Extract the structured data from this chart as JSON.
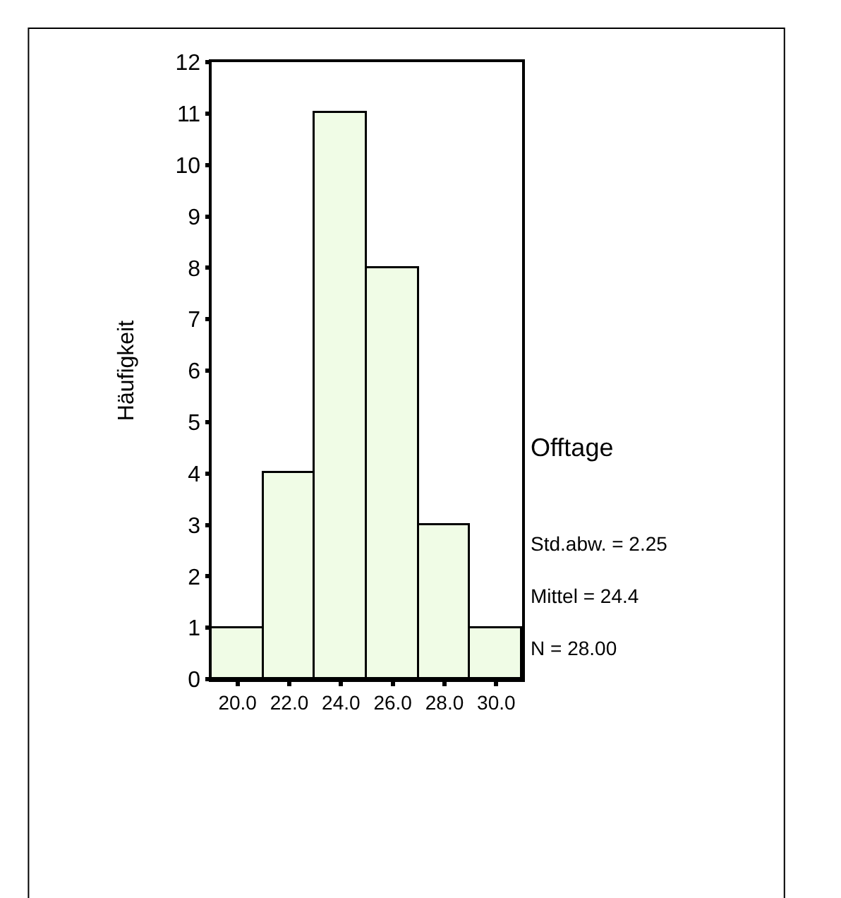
{
  "chart_data": {
    "type": "histogram",
    "xlabel": "Offtage",
    "ylabel": "Häufigkeit",
    "bins": [
      19,
      21,
      23,
      25,
      27,
      29,
      31
    ],
    "values": [
      1,
      4,
      11,
      8,
      3,
      1
    ],
    "color": "#f0fce6",
    "xlim": [
      19,
      31
    ],
    "xticks": [
      {
        "value": 20,
        "label": "20.0"
      },
      {
        "value": 22,
        "label": "22.0"
      },
      {
        "value": 24,
        "label": "24.0"
      },
      {
        "value": 26,
        "label": "26.0"
      },
      {
        "value": 28,
        "label": "28.0"
      },
      {
        "value": 30,
        "label": "30.0"
      }
    ],
    "ylim": [
      0,
      12
    ],
    "yticks": [
      0,
      1,
      2,
      3,
      4,
      5,
      6,
      7,
      8,
      9,
      10,
      11,
      12
    ],
    "annotations": [
      "Std.abw. = 2.25",
      "Mittel = 24.4",
      "N = 28.00"
    ]
  }
}
